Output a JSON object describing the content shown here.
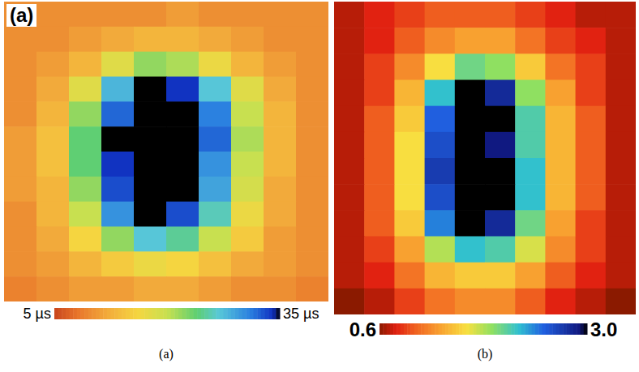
{
  "chart_data": [
    {
      "type": "heatmap",
      "title": "(a)",
      "caption": "(a)",
      "tick_labels": false,
      "cells": [
        [
          10,
          10,
          10,
          10,
          10,
          11,
          10,
          10,
          10,
          10
        ],
        [
          10,
          10,
          11,
          12,
          13,
          13,
          12,
          11,
          10,
          10
        ],
        [
          10,
          11,
          13,
          18,
          22,
          21,
          17,
          13,
          11,
          10
        ],
        [
          10,
          12,
          18,
          28,
          35,
          34,
          27,
          18,
          12,
          10
        ],
        [
          10,
          13,
          22,
          32,
          35,
          35,
          31,
          20,
          13,
          10
        ],
        [
          11,
          14,
          24,
          35,
          35,
          35,
          32,
          21,
          13,
          10
        ],
        [
          11,
          14,
          24,
          34,
          35,
          35,
          30,
          20,
          13,
          10
        ],
        [
          11,
          13,
          22,
          33,
          35,
          35,
          29,
          19,
          12,
          10
        ],
        [
          10,
          13,
          20,
          30,
          35,
          33,
          26,
          17,
          12,
          10
        ],
        [
          10,
          12,
          16,
          22,
          27,
          25,
          20,
          15,
          11,
          10
        ],
        [
          10,
          11,
          13,
          15,
          17,
          16,
          14,
          12,
          11,
          10
        ],
        [
          9,
          10,
          11,
          11,
          12,
          12,
          11,
          10,
          10,
          9
        ]
      ],
      "colorbar": {
        "range": [
          5,
          35
        ],
        "ticks": [
          {
            "value": 5,
            "label": "5 µs"
          },
          {
            "value": 35,
            "label": "35 µs"
          }
        ]
      }
    },
    {
      "type": "heatmap",
      "caption": "(b)",
      "tick_labels": false,
      "cells": [
        [
          0.7,
          0.8,
          0.9,
          1.0,
          1.0,
          1.0,
          0.9,
          0.8,
          0.7,
          0.7
        ],
        [
          0.7,
          0.8,
          1.0,
          1.2,
          1.3,
          1.3,
          1.1,
          0.9,
          0.8,
          0.7
        ],
        [
          0.7,
          0.9,
          1.2,
          1.6,
          2.0,
          1.9,
          1.5,
          1.1,
          0.9,
          0.7
        ],
        [
          0.7,
          0.9,
          1.4,
          2.2,
          3.0,
          2.8,
          1.9,
          1.3,
          0.9,
          0.7
        ],
        [
          0.7,
          1.0,
          1.5,
          2.5,
          3.0,
          3.0,
          2.1,
          1.4,
          1.0,
          0.7
        ],
        [
          0.7,
          1.0,
          1.6,
          2.6,
          3.0,
          2.9,
          2.1,
          1.4,
          1.0,
          0.7
        ],
        [
          0.7,
          1.0,
          1.6,
          2.7,
          3.0,
          3.0,
          2.2,
          1.4,
          1.0,
          0.7
        ],
        [
          0.7,
          1.0,
          1.6,
          2.6,
          3.0,
          3.0,
          2.2,
          1.4,
          1.0,
          0.7
        ],
        [
          0.7,
          1.0,
          1.5,
          2.4,
          3.0,
          2.8,
          2.0,
          1.3,
          0.9,
          0.7
        ],
        [
          0.7,
          0.9,
          1.3,
          1.8,
          2.2,
          2.1,
          1.7,
          1.2,
          0.9,
          0.7
        ],
        [
          0.7,
          0.8,
          1.1,
          1.4,
          1.5,
          1.5,
          1.3,
          1.0,
          0.8,
          0.7
        ],
        [
          0.6,
          0.7,
          0.9,
          1.1,
          1.2,
          1.2,
          1.0,
          0.8,
          0.7,
          0.6
        ]
      ],
      "colorbar": {
        "range": [
          0.6,
          3.0
        ],
        "ticks": [
          0.6,
          {
            "value": 3,
            "label": "3.0"
          }
        ]
      }
    }
  ]
}
